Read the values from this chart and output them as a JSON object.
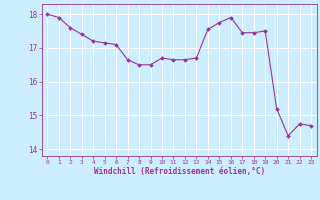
{
  "x": [
    0,
    1,
    2,
    3,
    4,
    5,
    6,
    7,
    8,
    9,
    10,
    11,
    12,
    13,
    14,
    15,
    16,
    17,
    18,
    19,
    20,
    21,
    22,
    23
  ],
  "y": [
    18.0,
    17.9,
    17.6,
    17.4,
    17.2,
    17.15,
    17.1,
    16.65,
    16.5,
    16.5,
    16.7,
    16.65,
    16.65,
    16.7,
    17.55,
    17.75,
    17.9,
    17.45,
    17.45,
    17.5,
    15.2,
    14.4,
    14.75,
    14.7
  ],
  "line_color": "#993399",
  "marker_color": "#993399",
  "bg_color": "#cceeff",
  "grid_color": "#ffffff",
  "xlabel": "Windchill (Refroidissement éolien,°C)",
  "xlabel_color": "#993399",
  "tick_color": "#993399",
  "ylim": [
    13.8,
    18.3
  ],
  "xlim": [
    -0.5,
    23.5
  ],
  "yticks": [
    14,
    15,
    16,
    17,
    18
  ],
  "xticks": [
    0,
    1,
    2,
    3,
    4,
    5,
    6,
    7,
    8,
    9,
    10,
    11,
    12,
    13,
    14,
    15,
    16,
    17,
    18,
    19,
    20,
    21,
    22,
    23
  ],
  "figsize": [
    3.2,
    2.0
  ],
  "dpi": 100
}
